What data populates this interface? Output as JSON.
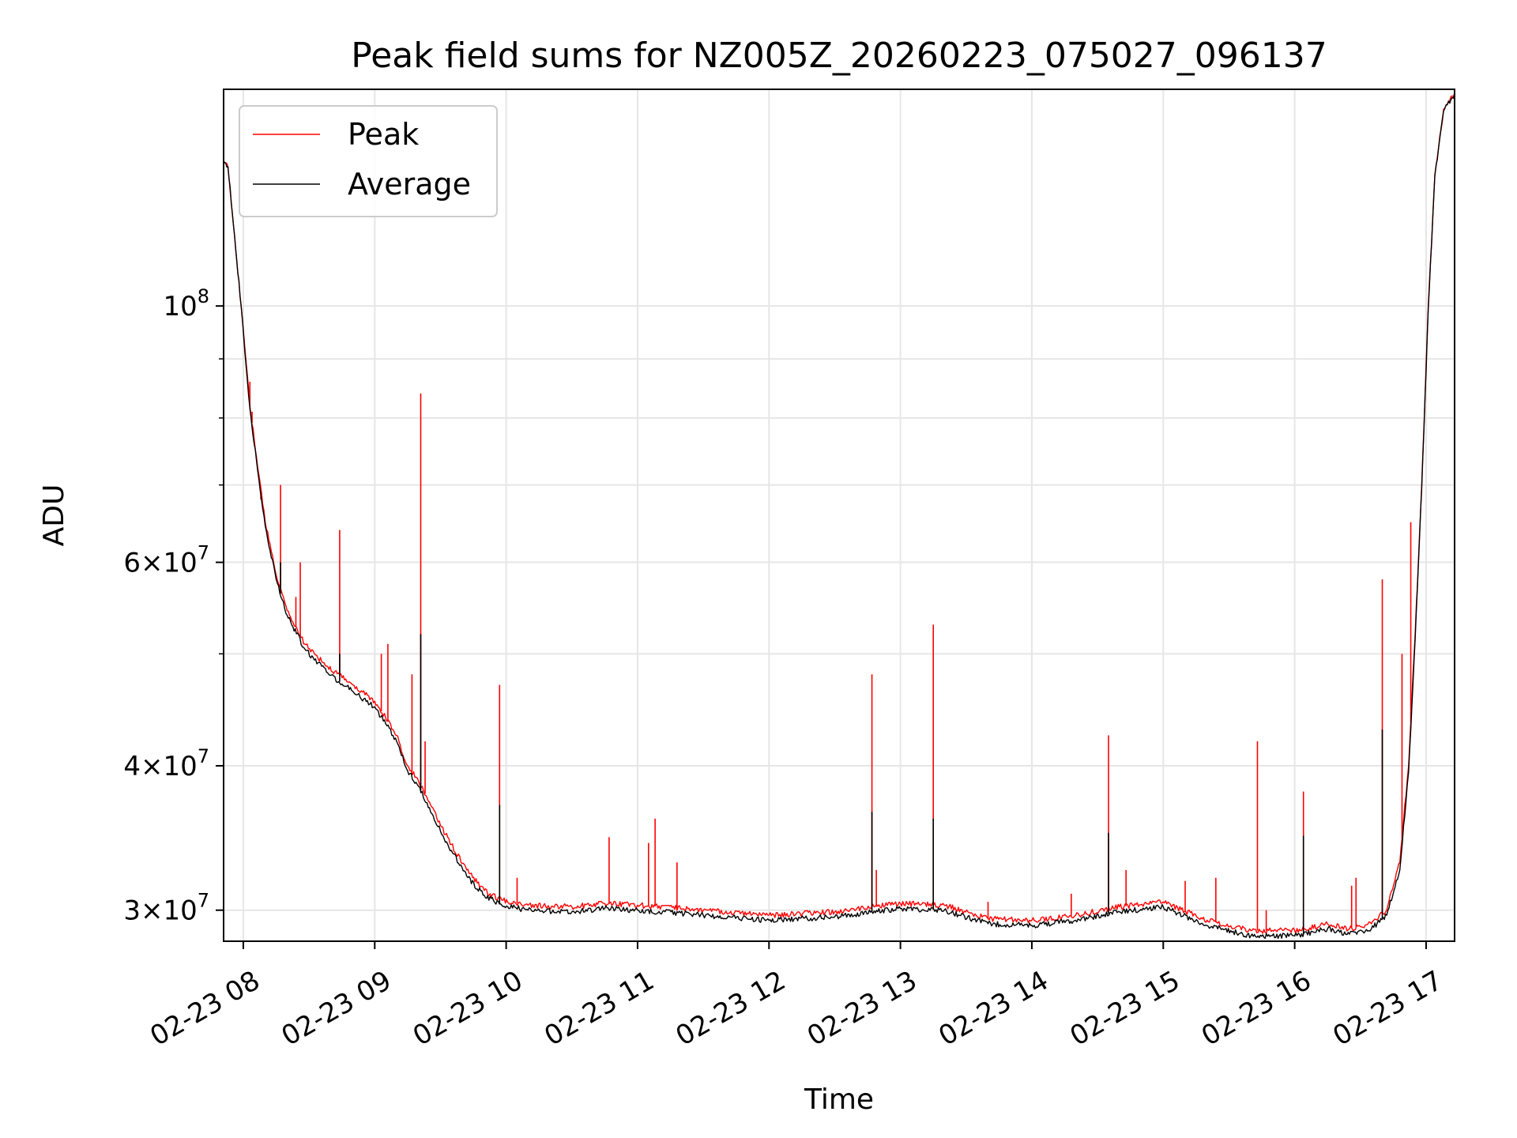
{
  "chart_data": {
    "type": "line",
    "title": "Peak field sums for NZ005Z_20260223_075027_096137",
    "xlabel": "Time",
    "ylabel": "ADU",
    "y_scale": "log",
    "xlim": [
      "2026-02-23 07:51",
      "2026-02-23 17:13"
    ],
    "ylim": [
      28200000,
      154000000
    ],
    "x_ticks": [
      {
        "t": "2026-02-23 08:00",
        "label": "02-23 08"
      },
      {
        "t": "2026-02-23 09:00",
        "label": "02-23 09"
      },
      {
        "t": "2026-02-23 10:00",
        "label": "02-23 10"
      },
      {
        "t": "2026-02-23 11:00",
        "label": "02-23 11"
      },
      {
        "t": "2026-02-23 12:00",
        "label": "02-23 12"
      },
      {
        "t": "2026-02-23 13:00",
        "label": "02-23 13"
      },
      {
        "t": "2026-02-23 14:00",
        "label": "02-23 14"
      },
      {
        "t": "2026-02-23 15:00",
        "label": "02-23 15"
      },
      {
        "t": "2026-02-23 16:00",
        "label": "02-23 16"
      },
      {
        "t": "2026-02-23 17:00",
        "label": "02-23 17"
      }
    ],
    "y_ticks": [
      {
        "value": 30000000,
        "base": "3×10",
        "exp": "7"
      },
      {
        "value": 40000000,
        "base": "4×10",
        "exp": "7"
      },
      {
        "value": 60000000,
        "base": "6×10",
        "exp": "7"
      },
      {
        "value": 100000000,
        "base": "10",
        "exp": "8"
      }
    ],
    "y_minor_ticks": [
      50000000,
      70000000,
      80000000,
      90000000
    ],
    "grid": true,
    "legend": "top-left",
    "series": [
      {
        "name": "Peak",
        "color": "#ff0000",
        "points": [
          [
            "2026-02-23 07:51",
            133000000
          ],
          [
            "2026-02-23 07:53",
            132000000
          ],
          [
            "2026-02-23 07:56",
            115000000
          ],
          [
            "2026-02-23 07:59",
            100000000
          ],
          [
            "2026-02-23 08:03",
            82000000
          ],
          [
            "2026-02-23 08:06",
            74000000
          ],
          [
            "2026-02-23 08:10",
            65000000
          ],
          [
            "2026-02-23 08:15",
            58500000
          ],
          [
            "2026-02-23 08:20",
            54500000
          ],
          [
            "2026-02-23 08:28",
            51000000
          ],
          [
            "2026-02-23 08:38",
            48800000
          ],
          [
            "2026-02-23 08:50",
            47000000
          ],
          [
            "2026-02-23 09:00",
            45500000
          ],
          [
            "2026-02-23 09:05",
            44000000
          ],
          [
            "2026-02-23 09:10",
            42500000
          ],
          [
            "2026-02-23 09:15",
            40000000
          ],
          [
            "2026-02-23 09:20",
            38800000
          ],
          [
            "2026-02-23 09:25",
            37200000
          ],
          [
            "2026-02-23 09:30",
            35500000
          ],
          [
            "2026-02-23 09:35",
            34200000
          ],
          [
            "2026-02-23 09:42",
            32500000
          ],
          [
            "2026-02-23 09:50",
            31200000
          ],
          [
            "2026-02-23 09:58",
            30600000
          ],
          [
            "2026-02-23 10:10",
            30300000
          ],
          [
            "2026-02-23 10:30",
            30200000
          ],
          [
            "2026-02-23 10:45",
            30400000
          ],
          [
            "2026-02-23 11:00",
            30300000
          ],
          [
            "2026-02-23 11:30",
            30000000
          ],
          [
            "2026-02-23 12:00",
            29700000
          ],
          [
            "2026-02-23 12:30",
            29900000
          ],
          [
            "2026-02-23 13:00",
            30400000
          ],
          [
            "2026-02-23 13:20",
            30300000
          ],
          [
            "2026-02-23 13:40",
            29500000
          ],
          [
            "2026-02-23 14:00",
            29400000
          ],
          [
            "2026-02-23 14:20",
            29700000
          ],
          [
            "2026-02-23 14:40",
            30200000
          ],
          [
            "2026-02-23 15:00",
            30500000
          ],
          [
            "2026-02-23 15:20",
            29400000
          ],
          [
            "2026-02-23 15:40",
            28800000
          ],
          [
            "2026-02-23 16:00",
            28800000
          ],
          [
            "2026-02-23 16:15",
            29200000
          ],
          [
            "2026-02-23 16:25",
            28900000
          ],
          [
            "2026-02-23 16:35",
            29200000
          ],
          [
            "2026-02-23 16:42",
            30000000
          ],
          [
            "2026-02-23 16:48",
            33000000
          ],
          [
            "2026-02-23 16:52",
            40000000
          ],
          [
            "2026-02-23 16:55",
            52000000
          ],
          [
            "2026-02-23 16:58",
            70000000
          ],
          [
            "2026-02-23 17:01",
            100000000
          ],
          [
            "2026-02-23 17:04",
            130000000
          ],
          [
            "2026-02-23 17:08",
            148000000
          ],
          [
            "2026-02-23 17:13",
            153000000
          ]
        ],
        "spikes": [
          [
            "2026-02-23 08:03",
            86000000
          ],
          [
            "2026-02-23 08:04",
            81000000
          ],
          [
            "2026-02-23 08:08",
            68000000
          ],
          [
            "2026-02-23 08:17",
            70000000
          ],
          [
            "2026-02-23 08:24",
            56000000
          ],
          [
            "2026-02-23 08:26",
            60000000
          ],
          [
            "2026-02-23 08:44",
            64000000
          ],
          [
            "2026-02-23 09:03",
            50000000
          ],
          [
            "2026-02-23 09:06",
            51000000
          ],
          [
            "2026-02-23 09:17",
            48000000
          ],
          [
            "2026-02-23 09:21",
            84000000
          ],
          [
            "2026-02-23 09:23",
            42000000
          ],
          [
            "2026-02-23 09:57",
            47000000
          ],
          [
            "2026-02-23 10:05",
            32000000
          ],
          [
            "2026-02-23 10:47",
            34700000
          ],
          [
            "2026-02-23 11:05",
            34300000
          ],
          [
            "2026-02-23 11:08",
            36000000
          ],
          [
            "2026-02-23 11:18",
            33000000
          ],
          [
            "2026-02-23 12:47",
            48000000
          ],
          [
            "2026-02-23 12:49",
            32500000
          ],
          [
            "2026-02-23 13:15",
            53000000
          ],
          [
            "2026-02-23 13:40",
            30500000
          ],
          [
            "2026-02-23 14:18",
            31000000
          ],
          [
            "2026-02-23 14:35",
            42500000
          ],
          [
            "2026-02-23 14:43",
            32500000
          ],
          [
            "2026-02-23 15:10",
            31800000
          ],
          [
            "2026-02-23 15:24",
            32000000
          ],
          [
            "2026-02-23 15:43",
            42000000
          ],
          [
            "2026-02-23 15:47",
            30000000
          ],
          [
            "2026-02-23 16:04",
            38000000
          ],
          [
            "2026-02-23 16:26",
            31500000
          ],
          [
            "2026-02-23 16:28",
            32000000
          ],
          [
            "2026-02-23 16:40",
            58000000
          ],
          [
            "2026-02-23 16:49",
            50000000
          ],
          [
            "2026-02-23 16:53",
            65000000
          ]
        ]
      },
      {
        "name": "Average",
        "color": "#000000",
        "points": [
          [
            "2026-02-23 07:51",
            133000000
          ],
          [
            "2026-02-23 07:53",
            132000000
          ],
          [
            "2026-02-23 07:56",
            115000000
          ],
          [
            "2026-02-23 07:59",
            100000000
          ],
          [
            "2026-02-23 08:03",
            81500000
          ],
          [
            "2026-02-23 08:06",
            73500000
          ],
          [
            "2026-02-23 08:10",
            64500000
          ],
          [
            "2026-02-23 08:15",
            58000000
          ],
          [
            "2026-02-23 08:20",
            54000000
          ],
          [
            "2026-02-23 08:28",
            50500000
          ],
          [
            "2026-02-23 08:38",
            48200000
          ],
          [
            "2026-02-23 08:50",
            46400000
          ],
          [
            "2026-02-23 09:00",
            45000000
          ],
          [
            "2026-02-23 09:05",
            43500000
          ],
          [
            "2026-02-23 09:10",
            42000000
          ],
          [
            "2026-02-23 09:15",
            39600000
          ],
          [
            "2026-02-23 09:20",
            38400000
          ],
          [
            "2026-02-23 09:25",
            36800000
          ],
          [
            "2026-02-23 09:30",
            35100000
          ],
          [
            "2026-02-23 09:35",
            33800000
          ],
          [
            "2026-02-23 09:42",
            32100000
          ],
          [
            "2026-02-23 09:50",
            30900000
          ],
          [
            "2026-02-23 09:58",
            30300000
          ],
          [
            "2026-02-23 10:10",
            30000000
          ],
          [
            "2026-02-23 10:30",
            29900000
          ],
          [
            "2026-02-23 10:45",
            30100000
          ],
          [
            "2026-02-23 11:00",
            30000000
          ],
          [
            "2026-02-23 11:30",
            29700000
          ],
          [
            "2026-02-23 12:00",
            29400000
          ],
          [
            "2026-02-23 12:30",
            29600000
          ],
          [
            "2026-02-23 13:00",
            30100000
          ],
          [
            "2026-02-23 13:20",
            30000000
          ],
          [
            "2026-02-23 13:40",
            29200000
          ],
          [
            "2026-02-23 14:00",
            29100000
          ],
          [
            "2026-02-23 14:20",
            29400000
          ],
          [
            "2026-02-23 14:40",
            29900000
          ],
          [
            "2026-02-23 15:00",
            30200000
          ],
          [
            "2026-02-23 15:20",
            29100000
          ],
          [
            "2026-02-23 15:40",
            28500000
          ],
          [
            "2026-02-23 16:00",
            28500000
          ],
          [
            "2026-02-23 16:15",
            28900000
          ],
          [
            "2026-02-23 16:25",
            28600000
          ],
          [
            "2026-02-23 16:35",
            28900000
          ],
          [
            "2026-02-23 16:42",
            29700000
          ],
          [
            "2026-02-23 16:48",
            32500000
          ],
          [
            "2026-02-23 16:52",
            39500000
          ],
          [
            "2026-02-23 16:55",
            51500000
          ],
          [
            "2026-02-23 16:58",
            69500000
          ],
          [
            "2026-02-23 17:01",
            99500000
          ],
          [
            "2026-02-23 17:04",
            129500000
          ],
          [
            "2026-02-23 17:08",
            147500000
          ],
          [
            "2026-02-23 17:13",
            152500000
          ]
        ],
        "spikes": [
          [
            "2026-02-23 08:17",
            60000000
          ],
          [
            "2026-02-23 08:44",
            50000000
          ],
          [
            "2026-02-23 09:21",
            52000000
          ],
          [
            "2026-02-23 09:57",
            37000000
          ],
          [
            "2026-02-23 12:47",
            36500000
          ],
          [
            "2026-02-23 13:15",
            36000000
          ],
          [
            "2026-02-23 14:35",
            35000000
          ],
          [
            "2026-02-23 16:04",
            34800000
          ],
          [
            "2026-02-23 16:40",
            43000000
          ]
        ]
      }
    ]
  }
}
